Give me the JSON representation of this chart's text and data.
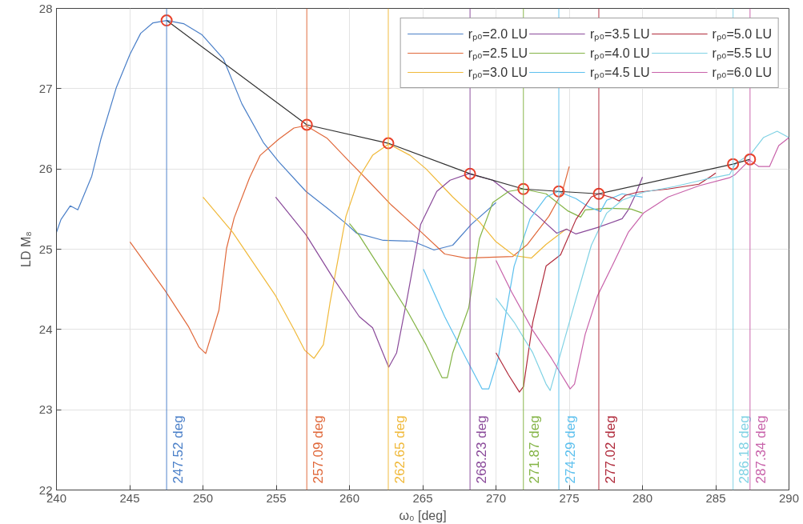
{
  "chart_data": {
    "type": "line",
    "xlabel": "ω₀ [deg]",
    "ylabel": "LD M₈",
    "xlim": [
      240,
      290
    ],
    "xticks": [
      240,
      245,
      250,
      255,
      260,
      265,
      270,
      275,
      280,
      285,
      290
    ],
    "ylim": [
      22,
      28
    ],
    "yticks": [
      22,
      23,
      24,
      25,
      26,
      27,
      28
    ],
    "grid": true,
    "legend": "top right",
    "marker": "none",
    "line_style": "solid",
    "series": [
      {
        "name": "rₚ₀=2.0 LU",
        "color": "#4a7fc8",
        "x": [
          240,
          240.31,
          240.94,
          241.46,
          242.41,
          243.03,
          244.08,
          245.02,
          245.75,
          246.59,
          247.53,
          248.68,
          249.94,
          251.4,
          252.66,
          254.12,
          255.17,
          257.03,
          258.49,
          259.76,
          260.49,
          262.31,
          264.32,
          265.77,
          267.05,
          268.32,
          270.0
        ],
        "values": [
          25.21,
          25.37,
          25.54,
          25.49,
          25.91,
          26.37,
          27.01,
          27.43,
          27.69,
          27.82,
          27.85,
          27.81,
          27.67,
          27.37,
          26.81,
          26.33,
          26.09,
          25.72,
          25.51,
          25.32,
          25.2,
          25.11,
          25.1,
          24.99,
          25.05,
          25.31,
          25.58
        ]
      },
      {
        "name": "rₚ₀=2.5 LU",
        "color": "#e0683a",
        "x": [
          245.02,
          247.43,
          249.0,
          249.73,
          250.19,
          251.09,
          251.61,
          252.13,
          253.18,
          253.91,
          255.17,
          256.21,
          257.03,
          258.49,
          259.95,
          261.4,
          262.86,
          264.68,
          266.5,
          267.96,
          271.15,
          272.15,
          273.61,
          274.52,
          275.0
        ],
        "values": [
          25.09,
          24.48,
          24.04,
          23.78,
          23.7,
          24.24,
          25.01,
          25.39,
          25.89,
          26.17,
          26.37,
          26.51,
          26.54,
          26.38,
          26.1,
          25.83,
          25.55,
          25.25,
          24.94,
          24.89,
          24.91,
          25.06,
          25.41,
          25.71,
          26.03
        ]
      },
      {
        "name": "rₚ₀=3.0 LU",
        "color": "#f0b93a",
        "x": [
          250.0,
          252.03,
          254.96,
          256.21,
          256.95,
          257.58,
          258.22,
          258.67,
          259.76,
          260.67,
          261.58,
          262.68,
          264.13,
          265.23,
          267.05,
          268.87,
          269.96,
          271.24,
          272.42,
          273.42,
          274.7,
          274.9
        ],
        "values": [
          25.65,
          25.21,
          24.42,
          24.0,
          23.74,
          23.64,
          23.81,
          24.33,
          25.41,
          25.9,
          26.17,
          26.31,
          26.17,
          26.0,
          25.65,
          25.34,
          25.1,
          24.92,
          24.89,
          25.06,
          25.24,
          25.25
        ]
      },
      {
        "name": "rₚ₀=3.5 LU",
        "color": "#8a4a9a",
        "x": [
          254.96,
          257.03,
          258.85,
          260.67,
          261.58,
          262.5,
          262.68,
          263.22,
          263.95,
          264.86,
          265.96,
          266.87,
          268.14,
          269.78,
          271.24,
          272.88,
          274.15,
          274.83,
          275.46,
          276.93,
          278.61,
          279.03,
          279.55,
          280.0
        ],
        "values": [
          25.65,
          25.18,
          24.65,
          24.16,
          24.02,
          23.61,
          23.53,
          23.71,
          24.4,
          25.31,
          25.72,
          25.86,
          25.94,
          25.86,
          25.65,
          25.41,
          25.2,
          25.25,
          25.19,
          25.27,
          25.38,
          25.49,
          25.69,
          25.9
        ]
      },
      {
        "name": "rₚ₀=4.0 LU",
        "color": "#84b446",
        "x": [
          260.0,
          260.67,
          262.5,
          263.95,
          265.23,
          266.32,
          266.68,
          267.05,
          268.14,
          268.87,
          269.78,
          270.87,
          271.84,
          273.42,
          274.88,
          275.78,
          276.09,
          277.56,
          279.23,
          280.0
        ],
        "values": [
          25.32,
          25.17,
          24.65,
          24.23,
          23.81,
          23.4,
          23.4,
          23.71,
          24.27,
          25.13,
          25.58,
          25.72,
          25.75,
          25.69,
          25.48,
          25.4,
          25.49,
          25.51,
          25.5,
          25.45
        ]
      },
      {
        "name": "rₚ₀=4.5 LU",
        "color": "#5cc0ee",
        "x": [
          265.05,
          266.5,
          267.96,
          269.05,
          269.51,
          270.15,
          271.24,
          272.33,
          273.42,
          274.24,
          275.46,
          276.3,
          277.14,
          277.56,
          278.61,
          280.0
        ],
        "values": [
          24.75,
          24.16,
          23.64,
          23.26,
          23.26,
          23.64,
          24.79,
          25.38,
          25.65,
          25.72,
          25.63,
          25.53,
          25.47,
          25.61,
          25.69,
          25.65
        ]
      },
      {
        "name": "rₚ₀=5.0 LU",
        "color": "#b02a3b",
        "x": [
          270.0,
          270.87,
          271.6,
          271.88,
          272.51,
          273.42,
          274.41,
          275.46,
          276.51,
          277.03,
          277.98,
          278.4,
          278.82,
          279.65,
          281.75,
          283.85,
          284.69,
          285.0
        ],
        "values": [
          23.71,
          23.43,
          23.22,
          23.29,
          24.09,
          24.79,
          24.93,
          25.37,
          25.65,
          25.69,
          25.64,
          25.6,
          25.67,
          25.71,
          25.75,
          25.81,
          25.91,
          25.95
        ]
      },
      {
        "name": "rₚ₀=5.5 LU",
        "color": "#80d2e4",
        "x": [
          270.0,
          271.24,
          272.51,
          273.42,
          273.7,
          274.41,
          275.46,
          276.51,
          277.56,
          278.61,
          280.07,
          282.17,
          284.27,
          285.94,
          286.36,
          287.41,
          288.25,
          289.19,
          290.0
        ],
        "values": [
          24.39,
          24.09,
          23.71,
          23.32,
          23.24,
          23.7,
          24.38,
          25.05,
          25.45,
          25.61,
          25.71,
          25.78,
          25.87,
          25.93,
          26.07,
          26.19,
          26.39,
          26.47,
          26.39
        ]
      },
      {
        "name": "rₚ₀=6.0 LU",
        "color": "#c862aa",
        "x": [
          270.0,
          271.06,
          272.51,
          273.79,
          275.06,
          275.36,
          276.09,
          276.93,
          277.98,
          279.03,
          280.07,
          281.75,
          283.85,
          285.94,
          286.32,
          287.31,
          287.94,
          288.67,
          289.3,
          290.0
        ],
        "values": [
          24.86,
          24.47,
          23.99,
          23.64,
          23.26,
          23.32,
          23.94,
          24.42,
          24.81,
          25.21,
          25.45,
          25.65,
          25.79,
          25.89,
          25.93,
          26.11,
          26.03,
          26.03,
          26.29,
          26.39
        ]
      },
      {
        "type": "line",
        "color": "#333333",
        "x": [
          247.52,
          257.09,
          262.65,
          268.23,
          271.87,
          274.29,
          277.02,
          286.18,
          287.34
        ],
        "values": [
          27.85,
          26.55,
          26.32,
          25.94,
          25.75,
          25.72,
          25.69,
          26.06,
          26.12
        ]
      },
      {
        "type": "scatter",
        "marker": "circle",
        "color": "#e8402a",
        "x": [
          247.52,
          257.09,
          262.65,
          268.23,
          271.87,
          274.29,
          277.02,
          286.18,
          287.34
        ],
        "values": [
          27.85,
          26.55,
          26.32,
          25.94,
          25.75,
          25.72,
          25.69,
          26.06,
          26.12
        ]
      }
    ],
    "ref_lines": [
      {
        "axis": "x",
        "value": 247.52,
        "label": "247.52 deg",
        "color": "#4a7fc8"
      },
      {
        "axis": "x",
        "value": 257.09,
        "label": "257.09 deg",
        "color": "#e0683a"
      },
      {
        "axis": "x",
        "value": 262.65,
        "label": "262.65 deg",
        "color": "#f0b93a"
      },
      {
        "axis": "x",
        "value": 268.23,
        "label": "268.23 deg",
        "color": "#8a4a9a"
      },
      {
        "axis": "x",
        "value": 271.87,
        "label": "271.87 deg",
        "color": "#84b446"
      },
      {
        "axis": "x",
        "value": 274.29,
        "label": "274.29 deg",
        "color": "#5cc0ee"
      },
      {
        "axis": "x",
        "value": 277.02,
        "label": "277.02 deg",
        "color": "#b02a3b"
      },
      {
        "axis": "x",
        "value": 286.18,
        "label": "286.18 deg",
        "color": "#80d2e4"
      },
      {
        "axis": "x",
        "value": 287.34,
        "label": "287.34 deg",
        "color": "#c862aa"
      }
    ]
  }
}
